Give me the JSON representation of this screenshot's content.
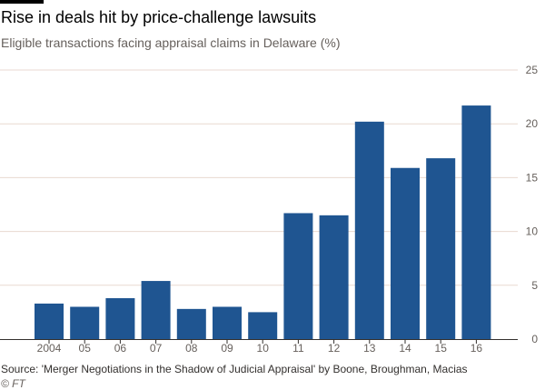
{
  "header": {
    "title": "Rise in deals hit by price-challenge lawsuits",
    "subtitle": "Eligible transactions facing appraisal claims in Delaware (%)"
  },
  "footer": {
    "source": "Source: 'Merger Negotiations in the Shadow of Judicial Appraisal' by Boone, Broughman, Macias",
    "credit": "© FT"
  },
  "colors": {
    "bar": "#1f5591",
    "grid": "#e8d9d0",
    "axis": "#33302e",
    "tick_text": "#66605c"
  },
  "chart_data": {
    "type": "bar",
    "title": "Rise in deals hit by price-challenge lawsuits",
    "subtitle": "Eligible transactions facing appraisal claims in Delaware (%)",
    "categories": [
      "2004",
      "05",
      "06",
      "07",
      "08",
      "09",
      "10",
      "11",
      "12",
      "13",
      "14",
      "15",
      "16"
    ],
    "values": [
      3.3,
      3.0,
      3.8,
      5.4,
      2.8,
      3.0,
      2.5,
      11.7,
      11.5,
      20.2,
      15.9,
      16.8,
      21.7
    ],
    "ylim": [
      0,
      25
    ],
    "yticks": [
      0,
      5,
      10,
      15,
      20,
      25
    ],
    "y_axis_position": "right",
    "grid": true
  }
}
